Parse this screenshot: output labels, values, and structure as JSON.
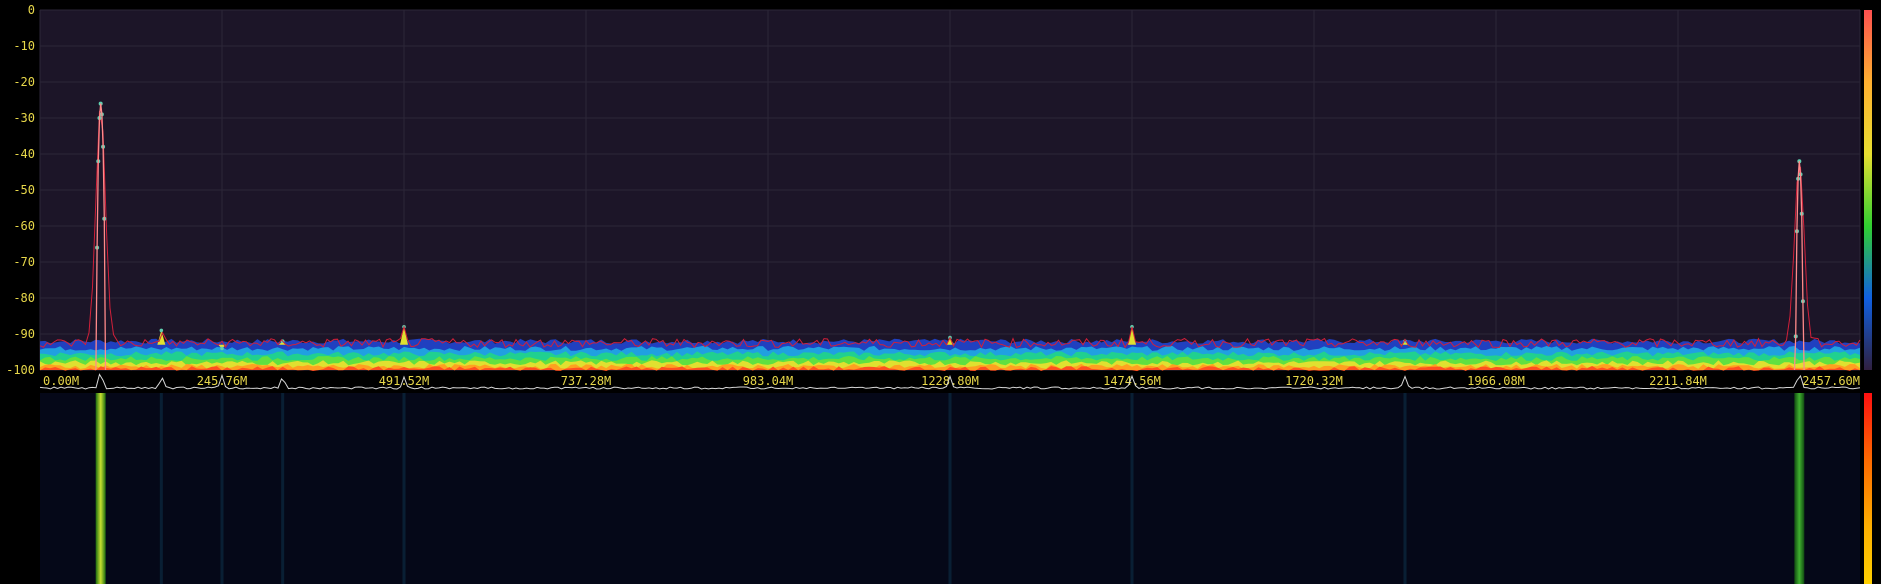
{
  "chart_data": {
    "type": "line",
    "title": "",
    "xlabel": "",
    "ylabel": "",
    "ylim": [
      -100,
      0
    ],
    "xlim_hz": [
      0,
      2457600000
    ],
    "y_ticks": [
      "0",
      "-10",
      "-20",
      "-30",
      "-40",
      "-50",
      "-60",
      "-70",
      "-80",
      "-90",
      "-100"
    ],
    "x_ticks": [
      {
        "label": "0.00M",
        "hz": 0
      },
      {
        "label": "245.76M",
        "hz": 245760000
      },
      {
        "label": "491.52M",
        "hz": 491520000
      },
      {
        "label": "737.28M",
        "hz": 737280000
      },
      {
        "label": "983.04M",
        "hz": 983040000
      },
      {
        "label": "1228.80M",
        "hz": 1228800000
      },
      {
        "label": "1474.56M",
        "hz": 1474560000
      },
      {
        "label": "1720.32M",
        "hz": 1720320000
      },
      {
        "label": "1966.08M",
        "hz": 1966080000
      },
      {
        "label": "2211.84M",
        "hz": 2211840000
      },
      {
        "label": "2457.60M",
        "hz": 2457600000
      }
    ],
    "grid": true,
    "noise_floor_db": -95,
    "peaks": [
      {
        "hz": 81920000,
        "db": -26,
        "kind": "carrier"
      },
      {
        "hz": 163840000,
        "db": -89,
        "kind": "spur"
      },
      {
        "hz": 245760000,
        "db": -94,
        "kind": "spur"
      },
      {
        "hz": 327680000,
        "db": -92,
        "kind": "spur"
      },
      {
        "hz": 491520000,
        "db": -88,
        "kind": "spur"
      },
      {
        "hz": 1228800000,
        "db": -91,
        "kind": "spur"
      },
      {
        "hz": 1474560000,
        "db": -88,
        "kind": "spur"
      },
      {
        "hz": 1843200000,
        "db": -92,
        "kind": "spur"
      },
      {
        "hz": 2375680000,
        "db": -42,
        "kind": "carrier"
      }
    ],
    "colors": {
      "background": "#1c1528",
      "grid": "#2c2638",
      "max_hold": "#d2203a",
      "trace": "#ff8a8a",
      "markers": "#5fd0b0",
      "waterfall_bg": "#050818",
      "tick_text": "#e8d84a"
    }
  }
}
